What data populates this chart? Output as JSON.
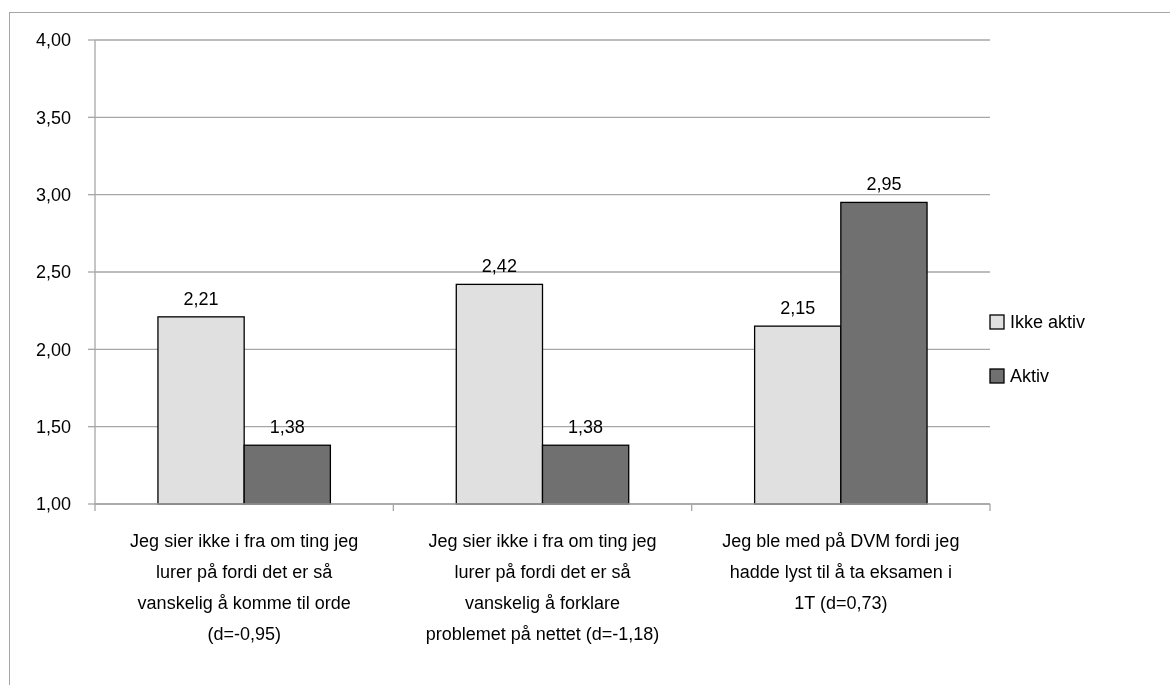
{
  "chart_data": {
    "type": "bar",
    "categories": [
      "Jeg sier ikke i fra om ting jeg lurer på fordi det er så vanskelig å komme til orde (d=-0,95)",
      "Jeg sier ikke i fra om ting jeg lurer på fordi det er så vanskelig å forklare problemet på nettet (d=-1,18)",
      "Jeg ble med på DVM fordi jeg hadde lyst til å ta eksamen i 1T (d=0,73)"
    ],
    "series": [
      {
        "name": "Ikke aktiv",
        "color": "#e0e0e0",
        "values": [
          2.21,
          2.42,
          2.15
        ],
        "value_labels": [
          "2,21",
          "2,42",
          "2,15"
        ]
      },
      {
        "name": "Aktiv",
        "color": "#707070",
        "values": [
          1.38,
          1.38,
          2.95
        ],
        "value_labels": [
          "1,38",
          "1,38",
          "2,95"
        ]
      }
    ],
    "ylim": [
      1,
      4
    ],
    "yticks": [
      {
        "value": 1,
        "label": "1,00"
      },
      {
        "value": 1.5,
        "label": "1,50"
      },
      {
        "value": 2,
        "label": "2,00"
      },
      {
        "value": 2.5,
        "label": "2,50"
      },
      {
        "value": 3,
        "label": "3,00"
      },
      {
        "value": 3.5,
        "label": "3,50"
      },
      {
        "value": 4,
        "label": "4,00"
      }
    ],
    "grid": "y",
    "legend": "right"
  }
}
